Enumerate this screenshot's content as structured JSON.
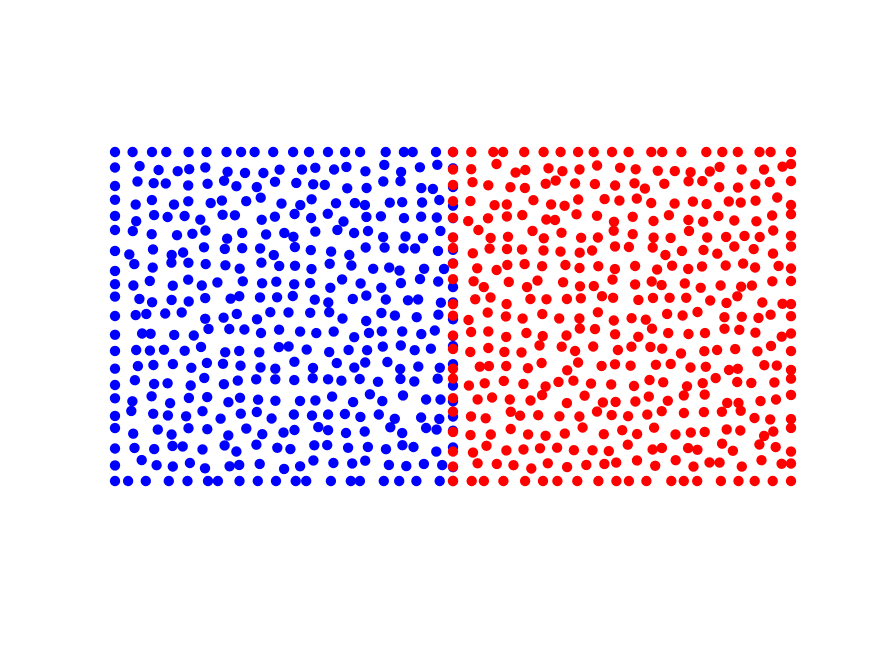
{
  "chart_data": {
    "type": "scatter",
    "title": "",
    "xlabel": "",
    "ylabel": "",
    "axes_visible": false,
    "grid": false,
    "legend": "none",
    "xlim": [
      0,
      2
    ],
    "ylim": [
      0,
      1
    ],
    "marker": "circle",
    "series": [
      {
        "color": "#0000ff",
        "region": {
          "x": [
            0,
            1
          ],
          "y": [
            0,
            1
          ]
        },
        "approx_point_count": 420
      },
      {
        "color": "#ff0000",
        "region": {
          "x": [
            1,
            2
          ],
          "y": [
            0,
            1
          ]
        },
        "approx_point_count": 420
      }
    ]
  }
}
